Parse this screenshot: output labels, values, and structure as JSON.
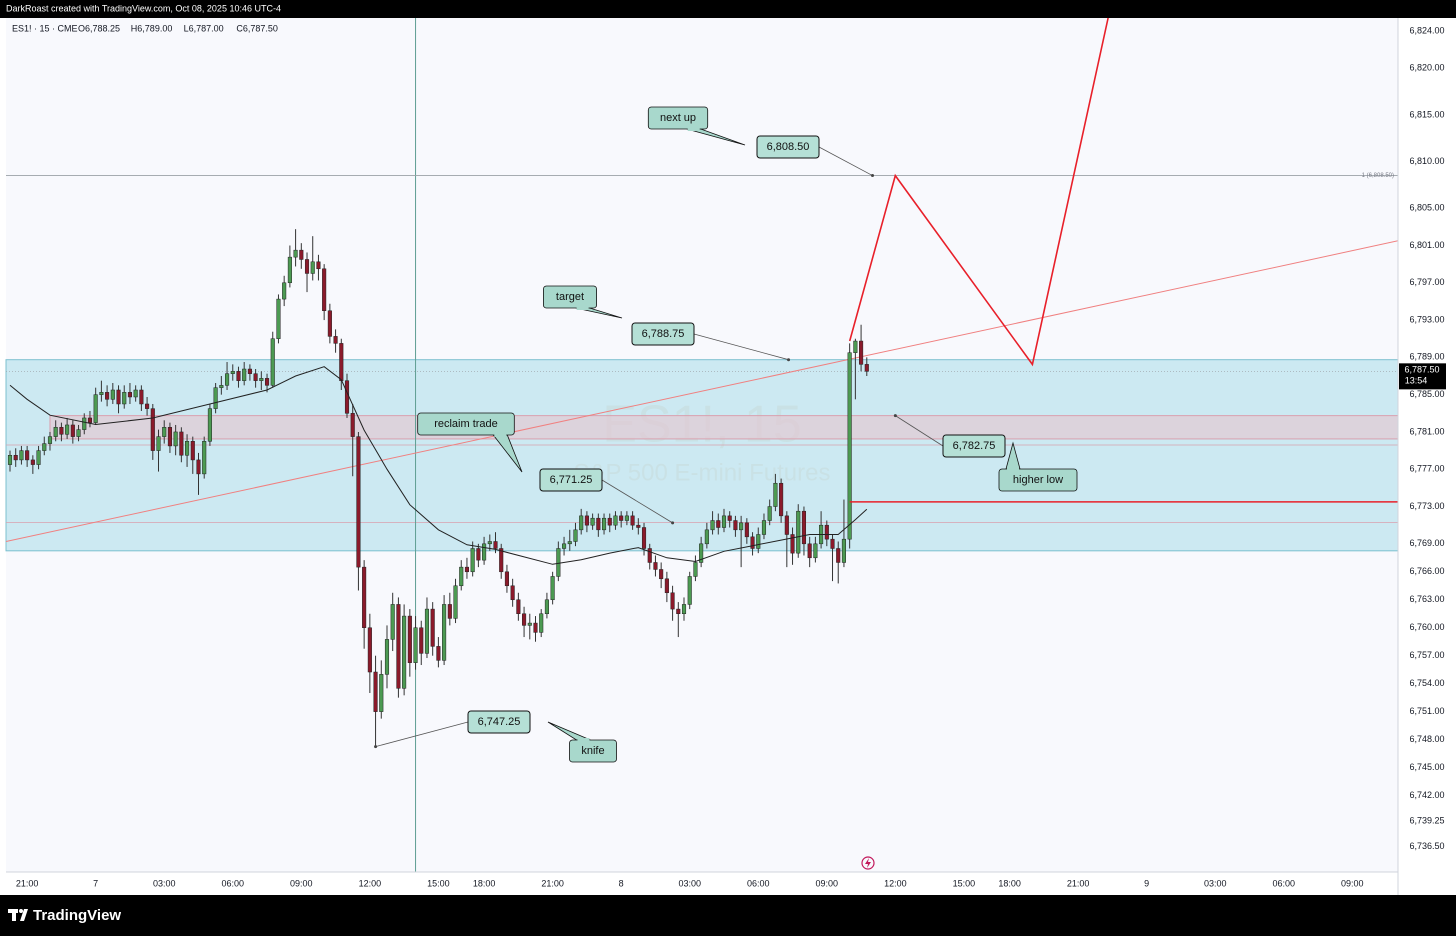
{
  "chart_data": {
    "type": "candlestick",
    "credit": "DarkRoast created with TradingView.com, Oct 08, 2025 10:46 UTC-4",
    "title": "ES1! · 15 · CME",
    "legend_values": [
      "O6,788.25",
      "H6,789.00",
      "L6,787.00",
      "C6,787.50"
    ],
    "watermark": "ES1!, 15",
    "watermark_subtitle": "S&P 500 E-mini Futures",
    "brand": "TradingView",
    "up_color": "#4c9a52",
    "down_color": "#8b1a2b",
    "xlim": [
      -0.7,
      243
    ],
    "ylim": [
      6733.8,
      6825.4
    ],
    "xticks": [
      {
        "value": 3,
        "label": "21:00"
      },
      {
        "value": 15,
        "label": "7"
      },
      {
        "value": 27,
        "label": "03:00"
      },
      {
        "value": 39,
        "label": "06:00"
      },
      {
        "value": 51,
        "label": "09:00"
      },
      {
        "value": 63,
        "label": "12:00"
      },
      {
        "value": 75,
        "label": "15:00"
      },
      {
        "value": 83,
        "label": "18:00"
      },
      {
        "value": 95,
        "label": "21:00"
      },
      {
        "value": 107,
        "label": "8"
      },
      {
        "value": 119,
        "label": "03:00"
      },
      {
        "value": 131,
        "label": "06:00"
      },
      {
        "value": 143,
        "label": "09:00"
      },
      {
        "value": 155,
        "label": "12:00"
      },
      {
        "value": 167,
        "label": "15:00"
      },
      {
        "value": 175,
        "label": "18:00"
      },
      {
        "value": 187,
        "label": "21:00"
      },
      {
        "value": 199,
        "label": "9"
      },
      {
        "value": 211,
        "label": "03:00"
      },
      {
        "value": 223,
        "label": "06:00"
      },
      {
        "value": 235,
        "label": "09:00"
      }
    ],
    "yticks": [
      {
        "value": 6824,
        "label": "6,824.00"
      },
      {
        "value": 6820,
        "label": "6,820.00"
      },
      {
        "value": 6815,
        "label": "6,815.00"
      },
      {
        "value": 6810,
        "label": "6,810.00"
      },
      {
        "value": 6805,
        "label": "6,805.00"
      },
      {
        "value": 6801,
        "label": "6,801.00"
      },
      {
        "value": 6797,
        "label": "6,797.00"
      },
      {
        "value": 6793,
        "label": "6,793.00"
      },
      {
        "value": 6789,
        "label": "6,789.00"
      },
      {
        "value": 6785,
        "label": "6,785.00"
      },
      {
        "value": 6781,
        "label": "6,781.00"
      },
      {
        "value": 6777,
        "label": "6,777.00"
      },
      {
        "value": 6773,
        "label": "6,773.00"
      },
      {
        "value": 6769,
        "label": "6,769.00"
      },
      {
        "value": 6766,
        "label": "6,766.00"
      },
      {
        "value": 6763,
        "label": "6,763.00"
      },
      {
        "value": 6760,
        "label": "6,760.00"
      },
      {
        "value": 6757,
        "label": "6,757.00"
      },
      {
        "value": 6754,
        "label": "6,754.00"
      },
      {
        "value": 6751,
        "label": "6,751.00"
      },
      {
        "value": 6748,
        "label": "6,748.00"
      },
      {
        "value": 6745,
        "label": "6,745.00"
      },
      {
        "value": 6742,
        "label": "6,742.00"
      },
      {
        "value": 6739.25,
        "label": "6,739.25"
      },
      {
        "value": 6736.5,
        "label": "6,736.50"
      }
    ],
    "last_price": {
      "value": 6787.5,
      "label": "6,787.50"
    },
    "countdown": "13:54",
    "ohlc": [
      [
        6777.5,
        6779,
        6776.75,
        6778.5
      ],
      [
        6778.5,
        6779.25,
        6777.25,
        6778
      ],
      [
        6778,
        6779.5,
        6777.5,
        6779
      ],
      [
        6779,
        6779.5,
        6777.25,
        6778
      ],
      [
        6778,
        6778.5,
        6776.5,
        6777.5
      ],
      [
        6777.5,
        6779.5,
        6777,
        6779
      ],
      [
        6779,
        6780.5,
        6778.5,
        6779.75
      ],
      [
        6779.75,
        6781,
        6779,
        6780.5
      ],
      [
        6780.5,
        6782.25,
        6780,
        6781.5
      ],
      [
        6781.5,
        6782,
        6780,
        6780.75
      ],
      [
        6780.75,
        6782.5,
        6780.25,
        6781.75
      ],
      [
        6781.75,
        6782.25,
        6779.75,
        6780.5
      ],
      [
        6780.5,
        6781.75,
        6780,
        6781.25
      ],
      [
        6781.25,
        6783,
        6780.75,
        6782.5
      ],
      [
        6782.5,
        6783.25,
        6781.5,
        6782
      ],
      [
        6782,
        6785.75,
        6781.75,
        6785
      ],
      [
        6785,
        6786.5,
        6784.25,
        6785.25
      ],
      [
        6785.25,
        6786,
        6783.75,
        6784.5
      ],
      [
        6784.5,
        6786.25,
        6784,
        6785.5
      ],
      [
        6785.5,
        6786,
        6783,
        6784
      ],
      [
        6784,
        6786,
        6783.5,
        6785.25
      ],
      [
        6785.25,
        6786.25,
        6784,
        6784.75
      ],
      [
        6784.75,
        6786,
        6784.25,
        6785.5
      ],
      [
        6785.5,
        6786,
        6783.25,
        6784
      ],
      [
        6784,
        6784.75,
        6782.75,
        6783.5
      ],
      [
        6783.5,
        6784,
        6778,
        6779
      ],
      [
        6779,
        6781.25,
        6776.75,
        6780.5
      ],
      [
        6780.5,
        6782.25,
        6779.75,
        6781.5
      ],
      [
        6781.5,
        6782,
        6778.75,
        6779.5
      ],
      [
        6779.5,
        6781.75,
        6778.5,
        6781
      ],
      [
        6781,
        6781.5,
        6777.75,
        6778.5
      ],
      [
        6778.5,
        6780.75,
        6777.25,
        6780
      ],
      [
        6780,
        6780.5,
        6776.5,
        6778
      ],
      [
        6778,
        6778.75,
        6774.25,
        6776.5
      ],
      [
        6776.5,
        6780.5,
        6776,
        6780
      ],
      [
        6780,
        6784,
        6779.5,
        6783.5
      ],
      [
        6783.5,
        6786.25,
        6783,
        6785.75
      ],
      [
        6785.75,
        6787,
        6785,
        6786
      ],
      [
        6786,
        6788.5,
        6785.5,
        6787.25
      ],
      [
        6787.25,
        6788.25,
        6786.5,
        6787.5
      ],
      [
        6787.5,
        6788,
        6785.75,
        6786.5
      ],
      [
        6786.5,
        6788.5,
        6786,
        6787.75
      ],
      [
        6787.75,
        6788.25,
        6786.5,
        6787.25
      ],
      [
        6787.25,
        6787.75,
        6785.75,
        6786.5
      ],
      [
        6786.5,
        6787.5,
        6785.5,
        6786.75
      ],
      [
        6786.75,
        6787.25,
        6785.25,
        6786
      ],
      [
        6786,
        6791.75,
        6785.75,
        6791
      ],
      [
        6791,
        6795.75,
        6790.5,
        6795.25
      ],
      [
        6795.25,
        6797.75,
        6794.5,
        6797
      ],
      [
        6797,
        6801,
        6796.5,
        6799.75
      ],
      [
        6799.75,
        6802.75,
        6798.75,
        6800.5
      ],
      [
        6800.5,
        6801.25,
        6798.5,
        6799.5
      ],
      [
        6799.5,
        6800.25,
        6796,
        6798
      ],
      [
        6798,
        6802,
        6797.25,
        6799.25
      ],
      [
        6799.25,
        6800,
        6797.25,
        6798.5
      ],
      [
        6798.5,
        6799,
        6793,
        6794
      ],
      [
        6794,
        6794.75,
        6790.5,
        6791.25
      ],
      [
        6791.25,
        6792,
        6789.5,
        6790.5
      ],
      [
        6790.5,
        6791,
        6785.5,
        6786.5
      ],
      [
        6786.5,
        6787.25,
        6782.5,
        6783
      ],
      [
        6783,
        6784,
        6776.25,
        6780.5
      ],
      [
        6780.5,
        6781,
        6764,
        6766.5
      ],
      [
        6766.5,
        6767.25,
        6757.75,
        6760
      ],
      [
        6760,
        6761.5,
        6753,
        6755.25
      ],
      [
        6755.25,
        6757,
        6747.25,
        6751
      ],
      [
        6751,
        6756.5,
        6750.25,
        6755
      ],
      [
        6755,
        6760.25,
        6753.5,
        6758.75
      ],
      [
        6758.75,
        6763.75,
        6757.5,
        6762.5
      ],
      [
        6762.5,
        6763.25,
        6752.5,
        6753.5
      ],
      [
        6753.5,
        6762.5,
        6752.75,
        6761.25
      ],
      [
        6761.25,
        6762,
        6754.75,
        6756.25
      ],
      [
        6756.25,
        6761.25,
        6755.5,
        6760
      ],
      [
        6760,
        6760.75,
        6756,
        6757.25
      ],
      [
        6757.25,
        6763.25,
        6756.75,
        6762
      ],
      [
        6762,
        6762.75,
        6757,
        6758
      ],
      [
        6758,
        6759,
        6755.75,
        6756.5
      ],
      [
        6756.5,
        6763.5,
        6756,
        6762.5
      ],
      [
        6762.5,
        6763.75,
        6760.25,
        6761
      ],
      [
        6761,
        6765.25,
        6760.5,
        6764.5
      ],
      [
        6764.5,
        6767.25,
        6764,
        6766.5
      ],
      [
        6766.5,
        6767.5,
        6765.25,
        6766
      ],
      [
        6766,
        6769.25,
        6765.5,
        6768.5
      ],
      [
        6768.5,
        6769,
        6766.5,
        6767.25
      ],
      [
        6767.25,
        6769.75,
        6766.75,
        6769
      ],
      [
        6769,
        6770,
        6768.25,
        6769.25
      ],
      [
        6769.25,
        6770.25,
        6768,
        6768.5
      ],
      [
        6768.5,
        6769,
        6765.25,
        6766
      ],
      [
        6766,
        6766.75,
        6763.75,
        6764.5
      ],
      [
        6764.5,
        6765.25,
        6762.25,
        6763
      ],
      [
        6763,
        6763.75,
        6760.75,
        6761.5
      ],
      [
        6761.5,
        6762.25,
        6759,
        6760.25
      ],
      [
        6760.25,
        6761.5,
        6758.75,
        6760.5
      ],
      [
        6760.5,
        6761.25,
        6758.5,
        6759.5
      ],
      [
        6759.5,
        6762,
        6759,
        6761.5
      ],
      [
        6761.5,
        6763.75,
        6761,
        6763
      ],
      [
        6763,
        6766,
        6762.5,
        6765.5
      ],
      [
        6765.5,
        6769.25,
        6765,
        6768.5
      ],
      [
        6768.5,
        6769.75,
        6767.75,
        6769
      ],
      [
        6769,
        6770.5,
        6768.25,
        6769.25
      ],
      [
        6769.25,
        6771.25,
        6768.75,
        6770.5
      ],
      [
        6770.5,
        6772.75,
        6770,
        6772
      ],
      [
        6772,
        6772.5,
        6770.25,
        6771
      ],
      [
        6771,
        6772.25,
        6770.5,
        6771.75
      ],
      [
        6771.75,
        6772.25,
        6769.75,
        6770.5
      ],
      [
        6770.5,
        6772.25,
        6770,
        6771.75
      ],
      [
        6771.75,
        6772.25,
        6770.25,
        6771
      ],
      [
        6771,
        6772.5,
        6770.5,
        6772
      ],
      [
        6772,
        6772.5,
        6770.75,
        6771.5
      ],
      [
        6771.5,
        6772.5,
        6771,
        6772
      ],
      [
        6772,
        6772.5,
        6770.5,
        6771
      ],
      [
        6771,
        6771.75,
        6770,
        6770.75
      ],
      [
        6770.75,
        6771.25,
        6767.75,
        6768.5
      ],
      [
        6768.5,
        6769,
        6766.25,
        6767
      ],
      [
        6767,
        6767.75,
        6765.5,
        6766.25
      ],
      [
        6766.25,
        6767,
        6764.25,
        6765.25
      ],
      [
        6765.25,
        6766,
        6762.75,
        6763.75
      ],
      [
        6763.75,
        6764.5,
        6760.75,
        6762
      ],
      [
        6762,
        6762.75,
        6759,
        6761.5
      ],
      [
        6761.5,
        6763.25,
        6760.75,
        6762.5
      ],
      [
        6762.5,
        6766,
        6762,
        6765.5
      ],
      [
        6765.5,
        6767.75,
        6765,
        6767
      ],
      [
        6767,
        6769.75,
        6766.5,
        6769
      ],
      [
        6769,
        6771.25,
        6768.5,
        6770.5
      ],
      [
        6770.5,
        6772.5,
        6770,
        6771.5
      ],
      [
        6771.5,
        6772.25,
        6770,
        6770.75
      ],
      [
        6770.75,
        6772.75,
        6770.25,
        6772
      ],
      [
        6772,
        6772.5,
        6770.75,
        6771.5
      ],
      [
        6771.5,
        6772,
        6769.75,
        6770.5
      ],
      [
        6770.5,
        6772,
        6766.5,
        6771.25
      ],
      [
        6771.25,
        6771.75,
        6769,
        6769.75
      ],
      [
        6769.75,
        6770.25,
        6767.75,
        6768.5
      ],
      [
        6768.5,
        6770.75,
        6768,
        6770
      ],
      [
        6770,
        6772.25,
        6769.5,
        6771.5
      ],
      [
        6771.5,
        6773.75,
        6771,
        6773
      ],
      [
        6773,
        6776.5,
        6772.5,
        6775.5
      ],
      [
        6775.5,
        6776,
        6771.25,
        6772
      ],
      [
        6772,
        6772.5,
        6766.5,
        6770
      ],
      [
        6770,
        6770.75,
        6766.75,
        6768
      ],
      [
        6768,
        6773.25,
        6767.5,
        6772.5
      ],
      [
        6772.5,
        6773,
        6767.75,
        6769
      ],
      [
        6769,
        6769.75,
        6766.5,
        6767.5
      ],
      [
        6767.5,
        6769.75,
        6767,
        6769
      ],
      [
        6769,
        6772.5,
        6768.5,
        6771
      ],
      [
        6771,
        6771.5,
        6768.75,
        6769.5
      ],
      [
        6769.5,
        6770,
        6765,
        6768.5
      ],
      [
        6768.5,
        6769.25,
        6764.75,
        6767
      ],
      [
        6767,
        6773.75,
        6766.5,
        6769.5
      ],
      [
        6769.5,
        6790.5,
        6768.5,
        6789.5
      ],
      [
        6789.5,
        6791,
        6784.5,
        6790.75
      ],
      [
        6790.75,
        6792.5,
        6787.5,
        6788.25
      ],
      [
        6788.25,
        6789,
        6787,
        6787.5
      ]
    ],
    "ma": {
      "color": "#222222",
      "x": [
        0,
        3,
        7,
        15,
        25,
        35,
        45,
        50,
        55,
        58,
        62,
        66,
        70,
        75,
        80,
        85,
        90,
        95,
        100,
        105,
        110,
        115,
        120,
        125,
        130,
        135,
        140,
        145,
        148,
        150
      ],
      "values": [
        6786,
        6784.5,
        6782.8,
        6781.8,
        6782.5,
        6784,
        6785.5,
        6787,
        6788,
        6786.6,
        6781.2,
        6777,
        6773.2,
        6770.5,
        6768.9,
        6768.4,
        6767.6,
        6766.8,
        6767.3,
        6768,
        6768.6,
        6767.5,
        6767.1,
        6768.2,
        6768.8,
        6769.4,
        6770,
        6770,
        6771.6,
        6772.7
      ]
    },
    "zones": [
      {
        "from": 6768.25,
        "to": 6788.75,
        "start": -0.7,
        "color": "#b9e2ec"
      },
      {
        "from": 6780.25,
        "to": 6782.75,
        "start": 7,
        "color": "#e3c9d3"
      }
    ],
    "levels": [
      6779.6,
      6771.3
    ],
    "vline": {
      "x": 71,
      "color": "#5f9e93"
    },
    "fib": {
      "value": 6808.5,
      "label": "1 (6,808.50)"
    },
    "trend": {
      "color": "#f08080",
      "x": [
        -0.7,
        243
      ],
      "values": [
        6769.25,
        6801.5
      ]
    },
    "path": {
      "color": "#e8202a",
      "x": [
        147,
        155,
        179,
        192.25
      ],
      "values": [
        6790.75,
        6808.5,
        6788.25,
        6825.4
      ]
    },
    "support": {
      "value": 6773.5,
      "start": 147,
      "color": "#e8202a"
    },
    "price_notes": [
      {
        "text": "6,808.50",
        "x": 151,
        "value": 6808.5
      },
      {
        "text": "6,788.75",
        "x": 136.3,
        "value": 6788.75
      },
      {
        "text": "6,771.25",
        "x": 116,
        "value": 6771.25
      },
      {
        "text": "6,747.25",
        "x": 64,
        "value": 6747.25
      },
      {
        "text": "6,782.75",
        "x": 155,
        "value": 6782.75
      }
    ],
    "notes": [
      "next up",
      "target",
      "reclaim trade",
      "knife",
      "higher low"
    ]
  }
}
